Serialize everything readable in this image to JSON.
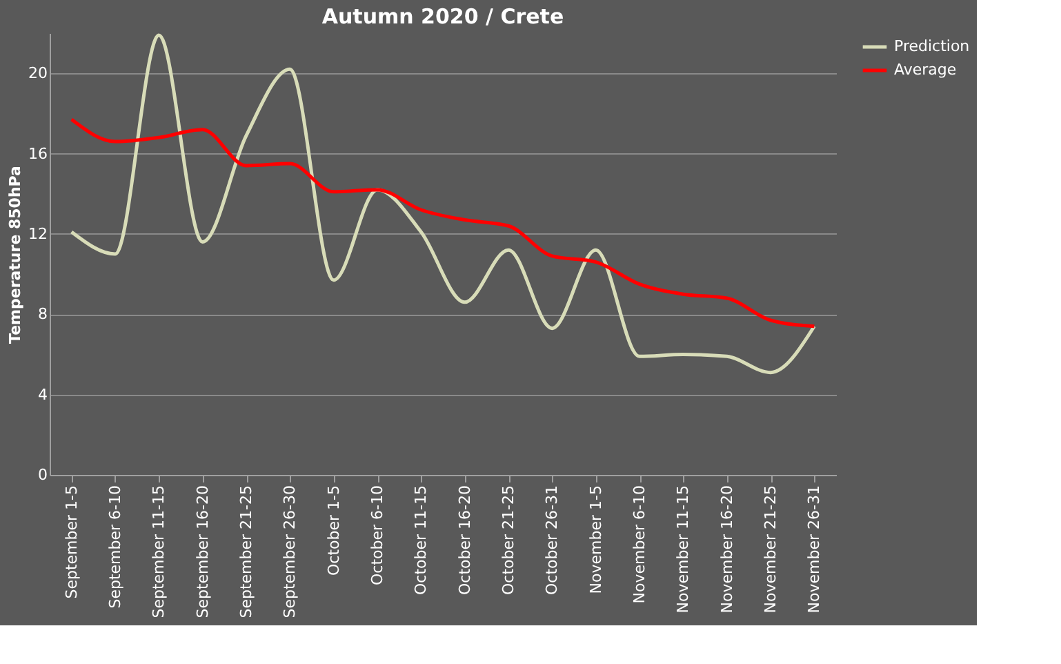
{
  "chart_data": {
    "type": "line",
    "title": "Autumn 2020 / Crete",
    "ylabel": "Temperature 850hPa",
    "categories": [
      "September 1-5",
      "September 6-10",
      "September 11-15",
      "September 16-20",
      "September 21-25",
      "September 26-30",
      "October 1-5",
      "October 6-10",
      "October 11-15",
      "October 16-20",
      "October 21-25",
      "October 26-31",
      "November 1-5",
      "November 6-10",
      "November 11-15",
      "November 16-20",
      "November 21-25",
      "November 26-31"
    ],
    "series": [
      {
        "name": "Prediction",
        "color": "#d8dcb8",
        "values": [
          12.1,
          11.0,
          21.9,
          11.6,
          16.9,
          20.2,
          9.7,
          14.2,
          12.1,
          8.6,
          11.2,
          7.3,
          11.2,
          5.9,
          6.0,
          5.9,
          5.1,
          7.4
        ]
      },
      {
        "name": "Average",
        "color": "#ff0000",
        "values": [
          17.7,
          16.6,
          16.8,
          17.2,
          15.4,
          15.5,
          14.1,
          14.2,
          13.2,
          12.7,
          12.4,
          10.9,
          10.6,
          9.5,
          9.0,
          8.8,
          7.7,
          7.4
        ]
      }
    ],
    "ylim": [
      0,
      22
    ],
    "yticks": [
      0,
      4,
      8,
      12,
      16,
      20
    ],
    "grid": "y",
    "legend": "right",
    "marker": "none",
    "line_style": "solid"
  }
}
